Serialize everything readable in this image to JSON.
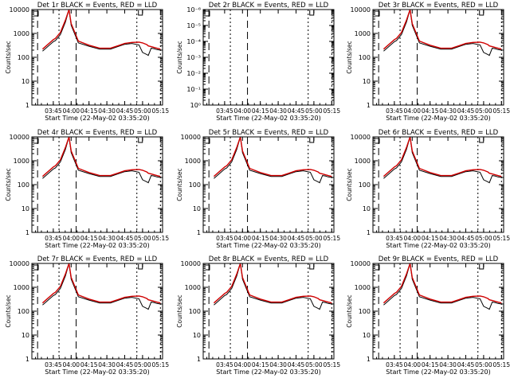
{
  "chart_data": [
    {
      "type": "line",
      "title": "Det 1r BLACK = Events, RED = LLD",
      "xlabel": "Start Time (22-May-02 03:35:20)",
      "ylabel": "Counts/sec",
      "xticks": [
        "03:45",
        "04:00",
        "04:15",
        "04:30",
        "04:45",
        "05:00",
        "05:15"
      ],
      "yticks": [
        "1",
        "10",
        "100",
        "1000",
        "10000"
      ],
      "series": [
        {
          "color": "#000000",
          "x": [
            3.6,
            3.75,
            3.78,
            3.85,
            3.92,
            3.97,
            4.0,
            4.1,
            4.25,
            4.4,
            4.55,
            4.65,
            4.75,
            4.85,
            4.95,
            5.0,
            5.06,
            5.08,
            5.12,
            5.16,
            5.2,
            5.25
          ],
          "y": [
            180,
            450,
            500,
            900,
            3000,
            10000,
            2200,
            400,
            290,
            220,
            220,
            280,
            350,
            380,
            330,
            160,
            130,
            120,
            240,
            230,
            210,
            200
          ]
        },
        {
          "color": "#d00000",
          "x": [
            3.6,
            3.75,
            3.78,
            3.85,
            3.92,
            3.97,
            4.0,
            4.1,
            4.25,
            4.4,
            4.55,
            4.65,
            4.75,
            4.85,
            4.95,
            5.0,
            5.06,
            5.08,
            5.12,
            5.16,
            5.2,
            5.25
          ],
          "y": [
            220,
            550,
            620,
            1100,
            3600,
            10000,
            2600,
            480,
            320,
            240,
            240,
            300,
            380,
            420,
            430,
            400,
            340,
            300,
            280,
            260,
            240,
            220
          ]
        }
      ]
    },
    {
      "type": "line",
      "title": "Det 2r BLACK = Events, RED = LLD",
      "xlabel": "Start Time (22-May-02 03:35:20)",
      "ylabel": "Counts/sec",
      "xticks": [
        "03:45",
        "04:00",
        "04:15",
        "04:30",
        "04:45",
        "05:00",
        "05:15"
      ],
      "yticks": [
        "10⁰",
        "10⁻¹",
        "10⁻²",
        "10⁻³",
        "10⁻⁴",
        "10⁻⁵",
        "10⁻⁶"
      ],
      "series": []
    },
    {
      "type": "line",
      "title": "Det 3r BLACK = Events, RED = LLD",
      "xlabel": "Start Time (22-May-02 03:35:20)",
      "ylabel": "Counts/sec",
      "xticks": [
        "03:45",
        "04:00",
        "04:15",
        "04:30",
        "04:45",
        "05:00",
        "05:15"
      ],
      "yticks": [
        "1",
        "10",
        "100",
        "1000",
        "10000"
      ],
      "series": [
        {
          "color": "#000000",
          "x": [
            3.6,
            3.75,
            3.78,
            3.85,
            3.92,
            3.97,
            4.0,
            4.1,
            4.25,
            4.4,
            4.55,
            4.65,
            4.75,
            4.85,
            4.95,
            5.0,
            5.06,
            5.08,
            5.12,
            5.16,
            5.2,
            5.25
          ],
          "y": [
            180,
            450,
            500,
            900,
            3000,
            10000,
            2200,
            400,
            290,
            220,
            220,
            280,
            350,
            380,
            330,
            160,
            130,
            120,
            240,
            230,
            210,
            200
          ]
        },
        {
          "color": "#d00000",
          "x": [
            3.6,
            3.75,
            3.78,
            3.85,
            3.92,
            3.97,
            4.0,
            4.1,
            4.25,
            4.4,
            4.55,
            4.65,
            4.75,
            4.85,
            4.95,
            5.0,
            5.06,
            5.08,
            5.12,
            5.16,
            5.2,
            5.25
          ],
          "y": [
            220,
            550,
            620,
            1100,
            3600,
            10000,
            2600,
            480,
            320,
            240,
            240,
            300,
            380,
            420,
            430,
            400,
            340,
            300,
            280,
            260,
            240,
            220
          ]
        }
      ]
    },
    {
      "type": "line",
      "title": "Det 4r BLACK = Events, RED = LLD",
      "xlabel": "Start Time (22-May-02 03:35:20)",
      "ylabel": "Counts/sec",
      "xticks": [
        "03:45",
        "04:00",
        "04:15",
        "04:30",
        "04:45",
        "05:00",
        "05:15"
      ],
      "yticks": [
        "1",
        "10",
        "100",
        "1000",
        "10000"
      ],
      "series": [
        {
          "color": "#000000",
          "x": [
            3.6,
            3.75,
            3.78,
            3.85,
            3.92,
            3.97,
            4.0,
            4.1,
            4.25,
            4.4,
            4.55,
            4.65,
            4.75,
            4.85,
            4.95,
            5.0,
            5.06,
            5.08,
            5.12,
            5.16,
            5.2,
            5.25
          ],
          "y": [
            180,
            450,
            500,
            900,
            3000,
            10000,
            2200,
            400,
            290,
            220,
            220,
            280,
            350,
            380,
            330,
            160,
            130,
            120,
            240,
            230,
            210,
            200
          ]
        },
        {
          "color": "#d00000",
          "x": [
            3.6,
            3.75,
            3.78,
            3.85,
            3.92,
            3.97,
            4.0,
            4.1,
            4.25,
            4.4,
            4.55,
            4.65,
            4.75,
            4.85,
            4.95,
            5.0,
            5.06,
            5.08,
            5.12,
            5.16,
            5.2,
            5.25
          ],
          "y": [
            220,
            550,
            620,
            1100,
            3600,
            10000,
            2600,
            480,
            320,
            240,
            240,
            300,
            380,
            420,
            430,
            400,
            340,
            300,
            280,
            260,
            240,
            220
          ]
        }
      ]
    },
    {
      "type": "line",
      "title": "Det 5r BLACK = Events, RED = LLD",
      "xlabel": "Start Time (22-May-02 03:35:20)",
      "ylabel": "Counts/sec",
      "xticks": [
        "03:45",
        "04:00",
        "04:15",
        "04:30",
        "04:45",
        "05:00",
        "05:15"
      ],
      "yticks": [
        "1",
        "10",
        "100",
        "1000",
        "10000"
      ],
      "series": [
        {
          "color": "#000000",
          "x": [
            3.6,
            3.75,
            3.78,
            3.85,
            3.92,
            3.97,
            4.0,
            4.1,
            4.25,
            4.4,
            4.55,
            4.65,
            4.75,
            4.85,
            4.95,
            5.0,
            5.06,
            5.08,
            5.12,
            5.16,
            5.2,
            5.25
          ],
          "y": [
            180,
            450,
            500,
            900,
            3000,
            10000,
            2200,
            400,
            290,
            220,
            220,
            280,
            350,
            380,
            330,
            160,
            130,
            120,
            240,
            230,
            210,
            200
          ]
        },
        {
          "color": "#d00000",
          "x": [
            3.6,
            3.75,
            3.78,
            3.85,
            3.92,
            3.97,
            4.0,
            4.1,
            4.25,
            4.4,
            4.55,
            4.65,
            4.75,
            4.85,
            4.95,
            5.0,
            5.06,
            5.08,
            5.12,
            5.16,
            5.2,
            5.25
          ],
          "y": [
            220,
            550,
            620,
            1100,
            3600,
            10000,
            2600,
            480,
            320,
            240,
            240,
            300,
            380,
            420,
            430,
            400,
            340,
            300,
            280,
            260,
            240,
            220
          ]
        }
      ]
    },
    {
      "type": "line",
      "title": "Det 6r BLACK = Events, RED = LLD",
      "xlabel": "Start Time (22-May-02 03:35:20)",
      "ylabel": "Counts/sec",
      "xticks": [
        "03:45",
        "04:00",
        "04:15",
        "04:30",
        "04:45",
        "05:00",
        "05:15"
      ],
      "yticks": [
        "1",
        "10",
        "100",
        "1000",
        "10000"
      ],
      "series": [
        {
          "color": "#000000",
          "x": [
            3.6,
            3.75,
            3.78,
            3.85,
            3.92,
            3.97,
            4.0,
            4.1,
            4.25,
            4.4,
            4.55,
            4.65,
            4.75,
            4.85,
            4.95,
            5.0,
            5.06,
            5.08,
            5.12,
            5.16,
            5.2,
            5.25
          ],
          "y": [
            180,
            450,
            500,
            900,
            3000,
            10000,
            2200,
            400,
            290,
            220,
            220,
            280,
            350,
            380,
            330,
            160,
            130,
            120,
            240,
            230,
            210,
            200
          ]
        },
        {
          "color": "#d00000",
          "x": [
            3.6,
            3.75,
            3.78,
            3.85,
            3.92,
            3.97,
            4.0,
            4.1,
            4.25,
            4.4,
            4.55,
            4.65,
            4.75,
            4.85,
            4.95,
            5.0,
            5.06,
            5.08,
            5.12,
            5.16,
            5.2,
            5.25
          ],
          "y": [
            220,
            550,
            620,
            1100,
            3600,
            10000,
            2600,
            480,
            320,
            240,
            240,
            300,
            380,
            420,
            430,
            400,
            340,
            300,
            280,
            260,
            240,
            220
          ]
        }
      ]
    },
    {
      "type": "line",
      "title": "Det 7r BLACK = Events, RED = LLD",
      "xlabel": "Start Time (22-May-02 03:35:20)",
      "ylabel": "Counts/sec",
      "xticks": [
        "03:45",
        "04:00",
        "04:15",
        "04:30",
        "04:45",
        "05:00",
        "05:15"
      ],
      "yticks": [
        "1",
        "10",
        "100",
        "1000",
        "10000"
      ],
      "series": [
        {
          "color": "#000000",
          "x": [
            3.6,
            3.75,
            3.78,
            3.85,
            3.92,
            3.97,
            4.0,
            4.1,
            4.25,
            4.4,
            4.55,
            4.65,
            4.75,
            4.85,
            4.95,
            5.0,
            5.06,
            5.08,
            5.12,
            5.16,
            5.2,
            5.25
          ],
          "y": [
            180,
            450,
            500,
            900,
            3000,
            10000,
            2200,
            400,
            290,
            220,
            220,
            280,
            350,
            380,
            330,
            160,
            130,
            120,
            240,
            230,
            210,
            200
          ]
        },
        {
          "color": "#d00000",
          "x": [
            3.6,
            3.75,
            3.78,
            3.85,
            3.92,
            3.97,
            4.0,
            4.1,
            4.25,
            4.4,
            4.55,
            4.65,
            4.75,
            4.85,
            4.95,
            5.0,
            5.06,
            5.08,
            5.12,
            5.16,
            5.2,
            5.25
          ],
          "y": [
            220,
            550,
            620,
            1100,
            3600,
            10000,
            2600,
            480,
            320,
            240,
            240,
            300,
            380,
            420,
            430,
            400,
            340,
            300,
            280,
            260,
            240,
            220
          ]
        }
      ]
    },
    {
      "type": "line",
      "title": "Det 8r BLACK = Events, RED = LLD",
      "xlabel": "Start Time (22-May-02 03:35:20)",
      "ylabel": "Counts/sec",
      "xticks": [
        "03:45",
        "04:00",
        "04:15",
        "04:30",
        "04:45",
        "05:00",
        "05:15"
      ],
      "yticks": [
        "1",
        "10",
        "100",
        "1000",
        "10000"
      ],
      "series": [
        {
          "color": "#000000",
          "x": [
            3.6,
            3.75,
            3.78,
            3.85,
            3.92,
            3.97,
            4.0,
            4.1,
            4.25,
            4.4,
            4.55,
            4.65,
            4.75,
            4.85,
            4.95,
            5.0,
            5.06,
            5.08,
            5.12,
            5.16,
            5.2,
            5.25
          ],
          "y": [
            180,
            450,
            500,
            900,
            3000,
            10000,
            2200,
            400,
            290,
            220,
            220,
            280,
            350,
            380,
            330,
            160,
            130,
            120,
            240,
            230,
            210,
            200
          ]
        },
        {
          "color": "#d00000",
          "x": [
            3.6,
            3.75,
            3.78,
            3.85,
            3.92,
            3.97,
            4.0,
            4.1,
            4.25,
            4.4,
            4.55,
            4.65,
            4.75,
            4.85,
            4.95,
            5.0,
            5.06,
            5.08,
            5.12,
            5.16,
            5.2,
            5.25
          ],
          "y": [
            220,
            550,
            620,
            1100,
            3600,
            10000,
            2600,
            480,
            320,
            240,
            240,
            300,
            380,
            420,
            430,
            400,
            340,
            300,
            280,
            260,
            240,
            220
          ]
        }
      ]
    },
    {
      "type": "line",
      "title": "Det 9r BLACK = Events, RED = LLD",
      "xlabel": "Start Time (22-May-02 03:35:20)",
      "ylabel": "Counts/sec",
      "xticks": [
        "03:45",
        "04:00",
        "04:15",
        "04:30",
        "04:45",
        "05:00",
        "05:15"
      ],
      "yticks": [
        "1",
        "10",
        "100",
        "1000",
        "10000"
      ],
      "series": [
        {
          "color": "#000000",
          "x": [
            3.6,
            3.75,
            3.78,
            3.85,
            3.92,
            3.97,
            4.0,
            4.1,
            4.25,
            4.4,
            4.55,
            4.65,
            4.75,
            4.85,
            4.95,
            5.0,
            5.06,
            5.08,
            5.12,
            5.16,
            5.2,
            5.25
          ],
          "y": [
            180,
            450,
            500,
            900,
            3000,
            10000,
            2200,
            400,
            290,
            220,
            220,
            280,
            350,
            380,
            330,
            160,
            130,
            120,
            240,
            230,
            210,
            200
          ]
        },
        {
          "color": "#d00000",
          "x": [
            3.6,
            3.75,
            3.78,
            3.85,
            3.92,
            3.97,
            4.0,
            4.1,
            4.25,
            4.4,
            4.55,
            4.65,
            4.75,
            4.85,
            4.95,
            5.0,
            5.06,
            5.08,
            5.12,
            5.16,
            5.2,
            5.25
          ],
          "y": [
            220,
            550,
            620,
            1100,
            3600,
            10000,
            2600,
            480,
            320,
            240,
            240,
            300,
            380,
            420,
            430,
            400,
            340,
            300,
            280,
            260,
            240,
            220
          ]
        }
      ]
    }
  ]
}
